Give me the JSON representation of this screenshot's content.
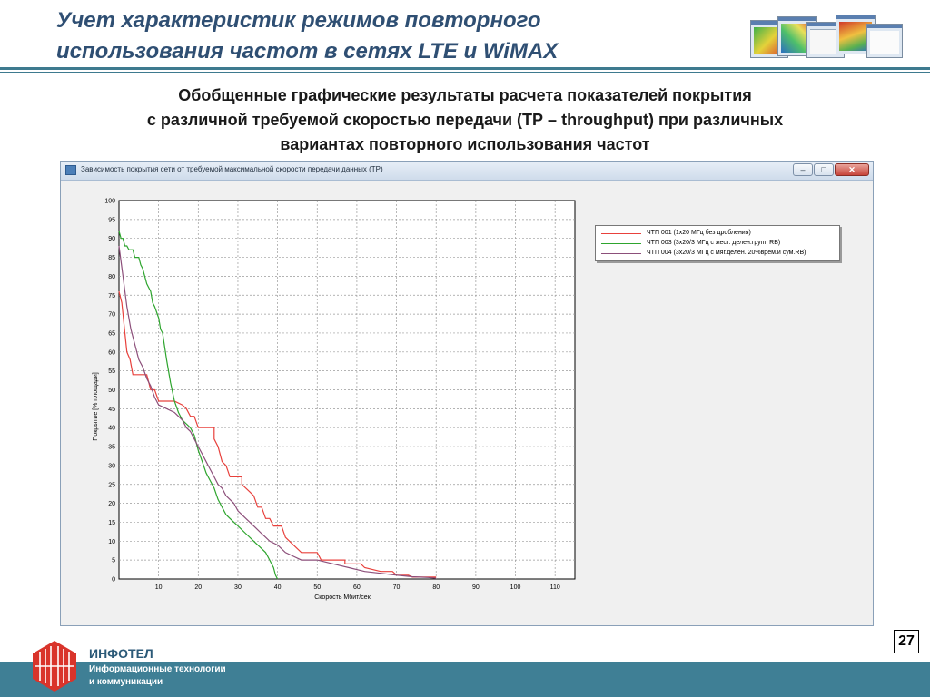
{
  "slide": {
    "title": "Учет  характеристик режимов повторного\nиспользования частот в сетях LTE и WiMAX",
    "subtitle": "Обобщенные графические результаты расчета показателей покрытия\nс различной требуемой скоростью передачи (ТР – throughput) при различных\nвариантах повторного использования частот",
    "page_number": "27"
  },
  "window": {
    "title": "Зависимость покрытия сети от требуемой максимальной скорости передачи данных (ТР)",
    "buttons": {
      "minimize": "–",
      "maximize": "□",
      "close": "✕"
    }
  },
  "footer": {
    "brand": "ИНФОТЕЛ",
    "tagline_1": "Информационные технологии",
    "tagline_2": "и коммуникации"
  },
  "colors": {
    "accent": "#3f7f95",
    "title": "#2f4f73",
    "series_red": "#e8413c",
    "series_green": "#2ea52e",
    "series_purple": "#8c4f7a",
    "logo_red": "#d9342b"
  },
  "chart_data": {
    "type": "line",
    "title": "",
    "xlabel": "Скорость Мбит/сек",
    "ylabel": "Покрытие [% площади]",
    "xlim": [
      0,
      115
    ],
    "ylim": [
      0,
      100
    ],
    "xticks": [
      10,
      20,
      30,
      40,
      50,
      60,
      70,
      80,
      90,
      100,
      110
    ],
    "yticks": [
      0,
      5,
      10,
      15,
      20,
      25,
      30,
      35,
      40,
      45,
      50,
      55,
      60,
      65,
      70,
      75,
      80,
      85,
      90,
      95,
      100
    ],
    "grid": true,
    "legend_position": "top-right",
    "series": [
      {
        "name": "ЧТП  001 (1х20 МГц без дробления)",
        "color": "#e8413c",
        "points": [
          [
            0,
            76
          ],
          [
            0.7,
            73
          ],
          [
            1.4,
            66
          ],
          [
            2,
            60
          ],
          [
            2.8,
            58
          ],
          [
            3.5,
            54
          ],
          [
            5,
            54
          ],
          [
            7,
            54
          ],
          [
            8,
            50
          ],
          [
            9,
            50
          ],
          [
            10,
            47
          ],
          [
            12,
            47
          ],
          [
            14,
            47
          ],
          [
            16,
            46
          ],
          [
            17,
            45
          ],
          [
            18,
            43
          ],
          [
            19,
            43
          ],
          [
            20,
            40
          ],
          [
            22,
            40
          ],
          [
            24,
            40
          ],
          [
            24,
            37
          ],
          [
            25,
            35
          ],
          [
            26,
            31
          ],
          [
            27,
            30
          ],
          [
            28,
            27
          ],
          [
            31,
            27
          ],
          [
            31,
            25
          ],
          [
            33,
            23
          ],
          [
            34,
            22
          ],
          [
            35,
            19
          ],
          [
            36,
            19
          ],
          [
            37,
            16
          ],
          [
            38,
            16
          ],
          [
            39,
            14
          ],
          [
            41,
            14
          ],
          [
            42,
            11
          ],
          [
            43,
            10
          ],
          [
            46,
            7
          ],
          [
            50,
            7
          ],
          [
            51,
            5
          ],
          [
            57,
            5
          ],
          [
            57,
            4
          ],
          [
            61,
            4
          ],
          [
            62,
            3
          ],
          [
            66,
            2
          ],
          [
            69,
            2
          ],
          [
            70,
            1
          ],
          [
            73,
            1
          ],
          [
            74,
            0.5
          ],
          [
            80,
            0.5
          ]
        ]
      },
      {
        "name": "ЧТП  003 (3х20/3 МГц с жест. делен.групп RB)",
        "color": "#2ea52e",
        "points": [
          [
            0,
            92
          ],
          [
            0.5,
            90
          ],
          [
            1,
            90
          ],
          [
            1.5,
            88
          ],
          [
            2,
            88
          ],
          [
            2.5,
            87
          ],
          [
            3.5,
            87
          ],
          [
            4,
            85
          ],
          [
            5,
            85
          ],
          [
            5.5,
            83
          ],
          [
            6,
            82
          ],
          [
            7,
            78
          ],
          [
            8,
            76
          ],
          [
            8.5,
            73
          ],
          [
            9,
            72
          ],
          [
            10,
            69
          ],
          [
            10.5,
            66
          ],
          [
            11,
            65
          ],
          [
            12,
            58
          ],
          [
            13,
            52
          ],
          [
            14,
            47
          ],
          [
            15,
            44
          ],
          [
            16,
            42
          ],
          [
            18,
            40
          ],
          [
            19,
            38
          ],
          [
            20,
            34
          ],
          [
            21,
            31
          ],
          [
            22,
            28
          ],
          [
            23,
            26
          ],
          [
            24,
            24
          ],
          [
            25,
            21
          ],
          [
            26,
            19
          ],
          [
            27,
            17
          ],
          [
            28,
            16
          ],
          [
            30,
            14
          ],
          [
            32,
            12
          ],
          [
            34,
            10
          ],
          [
            36,
            8
          ],
          [
            37,
            7
          ],
          [
            38,
            5
          ],
          [
            39,
            3
          ],
          [
            39.5,
            1
          ],
          [
            40,
            0
          ]
        ]
      },
      {
        "name": "ЧТП  004 (3х20/3 МГц с мяг.делен. 20%врем.и сум.RB)",
        "color": "#8c4f7a",
        "points": [
          [
            0,
            88
          ],
          [
            1,
            80
          ],
          [
            2,
            72
          ],
          [
            3,
            66
          ],
          [
            4,
            62
          ],
          [
            5,
            58
          ],
          [
            6,
            56
          ],
          [
            7,
            53
          ],
          [
            8,
            51
          ],
          [
            9,
            48
          ],
          [
            10,
            46
          ],
          [
            12,
            45
          ],
          [
            14,
            44
          ],
          [
            16,
            42
          ],
          [
            17,
            40
          ],
          [
            18,
            39
          ],
          [
            19,
            37
          ],
          [
            20,
            35
          ],
          [
            21,
            33
          ],
          [
            22,
            31
          ],
          [
            23,
            29
          ],
          [
            24,
            27
          ],
          [
            25,
            25
          ],
          [
            26,
            24
          ],
          [
            27,
            22
          ],
          [
            28,
            21
          ],
          [
            29,
            20
          ],
          [
            30,
            18
          ],
          [
            31,
            17
          ],
          [
            32,
            16
          ],
          [
            33,
            15
          ],
          [
            34,
            14
          ],
          [
            35,
            13
          ],
          [
            36,
            12
          ],
          [
            37,
            11
          ],
          [
            38,
            10
          ],
          [
            40,
            9
          ],
          [
            42,
            7
          ],
          [
            44,
            6
          ],
          [
            46,
            5
          ],
          [
            48,
            5
          ],
          [
            50,
            5
          ],
          [
            54,
            4
          ],
          [
            58,
            3
          ],
          [
            62,
            2
          ],
          [
            66,
            1.5
          ],
          [
            70,
            1
          ],
          [
            74,
            0.6
          ],
          [
            78,
            0.4
          ],
          [
            80,
            0.2
          ]
        ]
      }
    ]
  }
}
